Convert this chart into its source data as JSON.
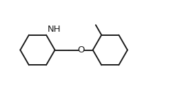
{
  "bg_color": "#ffffff",
  "line_color": "#1a1a1a",
  "line_width": 1.4,
  "font_size": 9.5,
  "nh_label": "NH",
  "o_label": "O",
  "figure_width": 2.67,
  "figure_height": 1.45,
  "dpi": 100
}
